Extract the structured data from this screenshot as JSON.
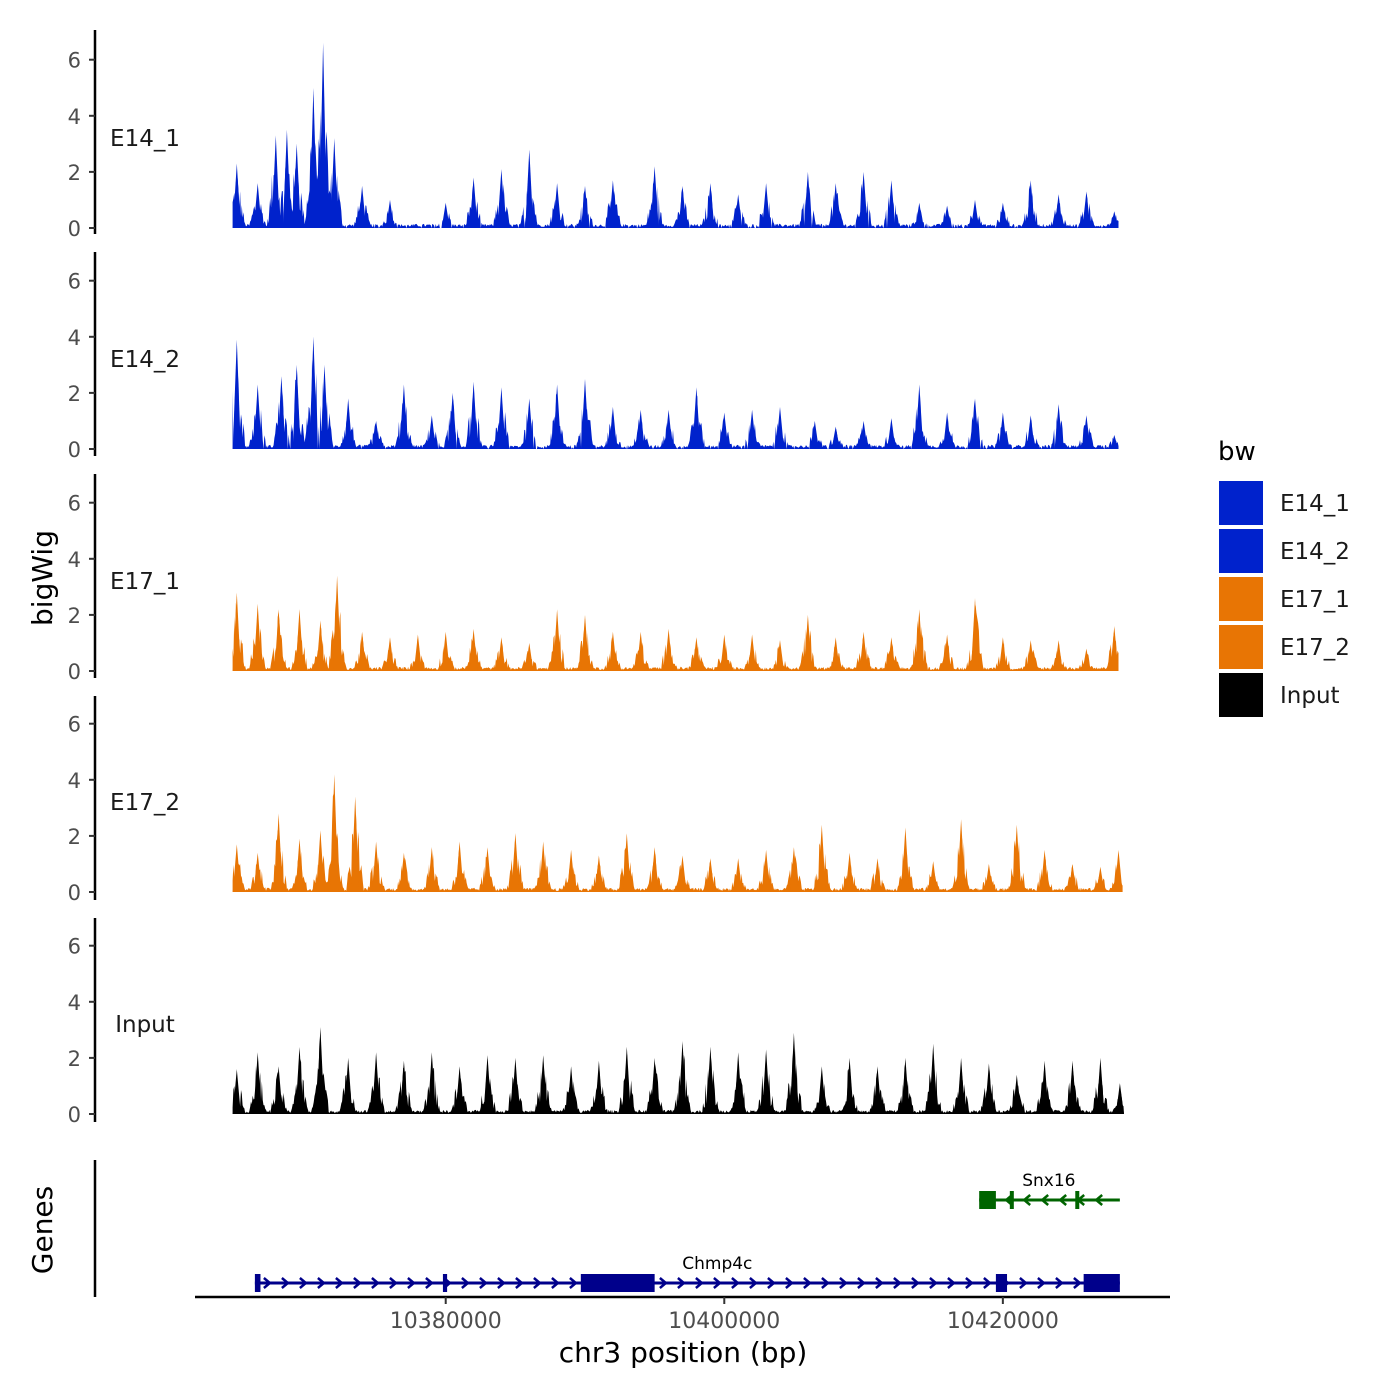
{
  "chart_data": {
    "type": "area",
    "title": "",
    "ylabel": "bigWig",
    "xlabel": "chr3 position (bp)",
    "ylim": [
      0,
      7
    ],
    "yticks": [
      0,
      2,
      4,
      6
    ],
    "xlim": [
      10362000,
      10432000
    ],
    "x_range_shown": [
      10365000,
      10428500
    ],
    "xticks": [
      10380000,
      10400000,
      10420000
    ],
    "xtick_labels": [
      "10380000",
      "10400000",
      "10420000"
    ],
    "legend": {
      "title": "bw",
      "placement": "right",
      "entries": [
        {
          "name": "E14_1",
          "color": "#0022CC"
        },
        {
          "name": "E14_2",
          "color": "#0022CC"
        },
        {
          "name": "E17_1",
          "color": "#E87504"
        },
        {
          "name": "E17_2",
          "color": "#E87504"
        },
        {
          "name": "Input",
          "color": "#000000"
        }
      ]
    },
    "tracks": [
      {
        "name": "E14_1",
        "color": "#0022CC",
        "peaks": [
          [
            10365000,
            2.3
          ],
          [
            10366500,
            1.6
          ],
          [
            10367800,
            3.3
          ],
          [
            10368600,
            3.5
          ],
          [
            10369300,
            3.0
          ],
          [
            10370500,
            5.0
          ],
          [
            10371200,
            6.6
          ],
          [
            10372000,
            3.2
          ],
          [
            10374000,
            1.5
          ],
          [
            10376000,
            1.0
          ],
          [
            10380000,
            0.9
          ],
          [
            10382000,
            1.8
          ],
          [
            10384000,
            2.1
          ],
          [
            10386000,
            2.8
          ],
          [
            10388000,
            1.6
          ],
          [
            10390000,
            1.5
          ],
          [
            10392000,
            1.7
          ],
          [
            10395000,
            2.2
          ],
          [
            10397000,
            1.5
          ],
          [
            10399000,
            1.6
          ],
          [
            10401000,
            1.2
          ],
          [
            10403000,
            1.6
          ],
          [
            10406000,
            2.0
          ],
          [
            10408000,
            1.6
          ],
          [
            10410000,
            2.0
          ],
          [
            10412000,
            1.7
          ],
          [
            10414000,
            0.9
          ],
          [
            10416000,
            0.8
          ],
          [
            10418000,
            1.0
          ],
          [
            10420000,
            0.9
          ],
          [
            10422000,
            1.7
          ],
          [
            10424000,
            1.2
          ],
          [
            10426000,
            1.3
          ],
          [
            10428000,
            0.6
          ]
        ]
      },
      {
        "name": "E14_2",
        "color": "#0022CC",
        "peaks": [
          [
            10365000,
            3.9
          ],
          [
            10366500,
            2.3
          ],
          [
            10368200,
            2.6
          ],
          [
            10369300,
            3.0
          ],
          [
            10370500,
            4.0
          ],
          [
            10371300,
            3.0
          ],
          [
            10373000,
            1.8
          ],
          [
            10375000,
            1.0
          ],
          [
            10377000,
            2.3
          ],
          [
            10379000,
            1.2
          ],
          [
            10380500,
            2.0
          ],
          [
            10382000,
            2.4
          ],
          [
            10384000,
            2.2
          ],
          [
            10386000,
            1.8
          ],
          [
            10388000,
            2.3
          ],
          [
            10390000,
            2.5
          ],
          [
            10392000,
            1.5
          ],
          [
            10394000,
            1.4
          ],
          [
            10396000,
            1.4
          ],
          [
            10398000,
            2.2
          ],
          [
            10400000,
            1.3
          ],
          [
            10402000,
            1.4
          ],
          [
            10404000,
            1.5
          ],
          [
            10406500,
            1.0
          ],
          [
            10408000,
            0.8
          ],
          [
            10410000,
            1.0
          ],
          [
            10412000,
            1.1
          ],
          [
            10414000,
            2.3
          ],
          [
            10416000,
            1.3
          ],
          [
            10418000,
            1.8
          ],
          [
            10420000,
            1.3
          ],
          [
            10422000,
            1.2
          ],
          [
            10424000,
            1.6
          ],
          [
            10426000,
            1.2
          ],
          [
            10428000,
            0.5
          ]
        ]
      },
      {
        "name": "E17_1",
        "color": "#E87504",
        "peaks": [
          [
            10365000,
            2.8
          ],
          [
            10366500,
            2.4
          ],
          [
            10368000,
            2.2
          ],
          [
            10369500,
            2.2
          ],
          [
            10371000,
            1.8
          ],
          [
            10372200,
            3.4
          ],
          [
            10374000,
            1.4
          ],
          [
            10376000,
            1.2
          ],
          [
            10378000,
            1.3
          ],
          [
            10380000,
            1.4
          ],
          [
            10382000,
            1.5
          ],
          [
            10384000,
            1.2
          ],
          [
            10386000,
            1.0
          ],
          [
            10388000,
            2.2
          ],
          [
            10390000,
            2.0
          ],
          [
            10392000,
            1.4
          ],
          [
            10394000,
            1.4
          ],
          [
            10396000,
            1.5
          ],
          [
            10398000,
            1.2
          ],
          [
            10400000,
            1.3
          ],
          [
            10402000,
            1.3
          ],
          [
            10404000,
            1.1
          ],
          [
            10406000,
            2.0
          ],
          [
            10408000,
            1.2
          ],
          [
            10410000,
            1.4
          ],
          [
            10412000,
            1.2
          ],
          [
            10414000,
            2.2
          ],
          [
            10416000,
            1.3
          ],
          [
            10418000,
            2.6
          ],
          [
            10420000,
            1.2
          ],
          [
            10422000,
            1.1
          ],
          [
            10424000,
            1.1
          ],
          [
            10426000,
            0.8
          ],
          [
            10428000,
            1.6
          ]
        ]
      },
      {
        "name": "E17_2",
        "color": "#E87504",
        "peaks": [
          [
            10365000,
            1.7
          ],
          [
            10366500,
            1.4
          ],
          [
            10368000,
            2.8
          ],
          [
            10369500,
            1.9
          ],
          [
            10371000,
            2.2
          ],
          [
            10372000,
            4.2
          ],
          [
            10373500,
            3.4
          ],
          [
            10375000,
            1.8
          ],
          [
            10377000,
            1.4
          ],
          [
            10379000,
            1.6
          ],
          [
            10381000,
            1.8
          ],
          [
            10383000,
            1.6
          ],
          [
            10385000,
            2.1
          ],
          [
            10387000,
            1.8
          ],
          [
            10389000,
            1.5
          ],
          [
            10391000,
            1.3
          ],
          [
            10393000,
            2.1
          ],
          [
            10395000,
            1.6
          ],
          [
            10397000,
            1.3
          ],
          [
            10399000,
            1.2
          ],
          [
            10401000,
            1.2
          ],
          [
            10403000,
            1.5
          ],
          [
            10405000,
            1.6
          ],
          [
            10407000,
            2.4
          ],
          [
            10409000,
            1.4
          ],
          [
            10411000,
            1.2
          ],
          [
            10413000,
            2.3
          ],
          [
            10415000,
            1.1
          ],
          [
            10417000,
            2.6
          ],
          [
            10419000,
            1.0
          ],
          [
            10421000,
            2.4
          ],
          [
            10423000,
            1.5
          ],
          [
            10425000,
            1.0
          ],
          [
            10427000,
            0.9
          ],
          [
            10428300,
            1.5
          ]
        ]
      },
      {
        "name": "Input",
        "color": "#000000",
        "peaks": [
          [
            10365000,
            1.6
          ],
          [
            10366500,
            2.2
          ],
          [
            10368000,
            1.7
          ],
          [
            10369500,
            2.4
          ],
          [
            10371000,
            3.1
          ],
          [
            10373000,
            2.0
          ],
          [
            10375000,
            2.2
          ],
          [
            10377000,
            1.9
          ],
          [
            10379000,
            2.2
          ],
          [
            10381000,
            1.7
          ],
          [
            10383000,
            2.1
          ],
          [
            10385000,
            2.0
          ],
          [
            10387000,
            2.1
          ],
          [
            10389000,
            1.7
          ],
          [
            10391000,
            1.9
          ],
          [
            10393000,
            2.4
          ],
          [
            10395000,
            2.0
          ],
          [
            10397000,
            2.6
          ],
          [
            10399000,
            2.4
          ],
          [
            10401000,
            2.2
          ],
          [
            10403000,
            2.3
          ],
          [
            10405000,
            2.9
          ],
          [
            10407000,
            1.7
          ],
          [
            10409000,
            2.0
          ],
          [
            10411000,
            1.7
          ],
          [
            10413000,
            2.0
          ],
          [
            10415000,
            2.5
          ],
          [
            10417000,
            2.0
          ],
          [
            10419000,
            1.8
          ],
          [
            10421000,
            1.4
          ],
          [
            10423000,
            1.9
          ],
          [
            10425000,
            1.9
          ],
          [
            10427000,
            2.0
          ],
          [
            10428400,
            1.1
          ]
        ]
      }
    ],
    "genes": [
      {
        "name": "Chmp4c",
        "color": "#00008B",
        "strand": "+",
        "start": 10366300,
        "end": 10428400,
        "exons": [
          [
            10366300,
            10366700
          ],
          [
            10379800,
            10380100
          ],
          [
            10389700,
            10395000
          ],
          [
            10419500,
            10420300
          ],
          [
            10425800,
            10428400
          ]
        ]
      },
      {
        "name": "Snx16",
        "color": "#006400",
        "strand": "-",
        "start": 10418300,
        "end": 10428400,
        "exons": [
          [
            10418300,
            10419500
          ],
          [
            10420500,
            10420700
          ],
          [
            10425200,
            10425400
          ]
        ]
      }
    ],
    "genes_axis_label": "Genes"
  }
}
